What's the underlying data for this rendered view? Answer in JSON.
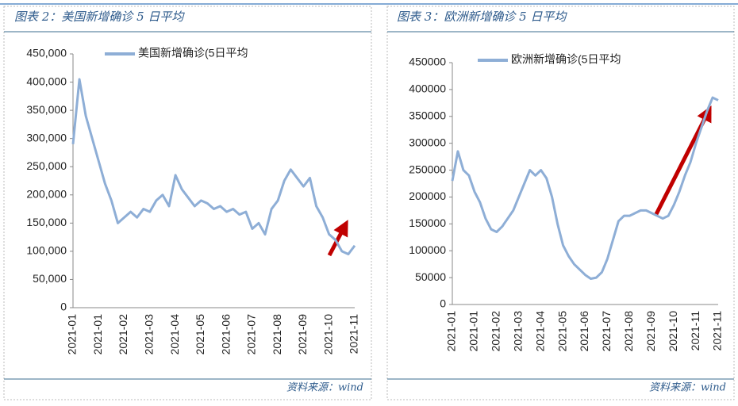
{
  "chart_data": [
    {
      "type": "line",
      "title": "图表 2：美国新增确诊 5 日平均",
      "source": "资料来源：wind",
      "categories": [
        "2021-01",
        null,
        null,
        null,
        "2021-01",
        null,
        null,
        null,
        "2021-02",
        null,
        null,
        null,
        "2021-03",
        null,
        null,
        null,
        "2021-04",
        null,
        null,
        null,
        "2021-05",
        null,
        null,
        null,
        "2021-06",
        null,
        null,
        null,
        "2021-07",
        null,
        null,
        null,
        "2021-08",
        null,
        null,
        null,
        "2021-09",
        null,
        null,
        null,
        "2021-10",
        null,
        null,
        null,
        "2021-11"
      ],
      "series": [
        {
          "name": "美国新增确诊(5日平均",
          "color": "#8eaed6",
          "values": [
            290000,
            405000,
            340000,
            300000,
            260000,
            220000,
            190000,
            150000,
            160000,
            170000,
            160000,
            175000,
            170000,
            190000,
            200000,
            180000,
            235000,
            210000,
            195000,
            180000,
            190000,
            185000,
            175000,
            180000,
            170000,
            175000,
            165000,
            170000,
            140000,
            150000,
            130000,
            175000,
            190000,
            225000,
            245000,
            230000,
            215000,
            230000,
            180000,
            160000,
            130000,
            120000,
            100000,
            95000,
            110000
          ]
        }
      ],
      "ylim": [
        0,
        450000
      ],
      "yticks": [
        {
          "value": 0,
          "label": "0"
        },
        {
          "value": 50000,
          "label": "50,000"
        },
        {
          "value": 100000,
          "label": "100,000"
        },
        {
          "value": 150000,
          "label": "150,000"
        },
        {
          "value": 200000,
          "label": "200,000"
        },
        {
          "value": 250000,
          "label": "250,000"
        },
        {
          "value": 300000,
          "label": "300,000"
        },
        {
          "value": 350000,
          "label": "350,000"
        },
        {
          "value": 400000,
          "label": "400,000"
        },
        {
          "value": 450000,
          "label": "450,000"
        }
      ],
      "legend": "top"
    },
    {
      "type": "line",
      "title": "图表 3：欧洲新增确诊 5 日平均",
      "source": "资料来源：wind",
      "categories": [
        "2021-01",
        null,
        null,
        null,
        "2021-01",
        null,
        null,
        null,
        "2021-02",
        null,
        null,
        null,
        "2021-03",
        null,
        null,
        null,
        "2021-04",
        null,
        null,
        null,
        "2021-05",
        null,
        null,
        null,
        "2021-06",
        null,
        null,
        null,
        "2021-07",
        null,
        null,
        null,
        "2021-08",
        null,
        null,
        null,
        "2021-09",
        null,
        null,
        null,
        "2021-10",
        null,
        null,
        null,
        "2021-11",
        null,
        null,
        null,
        "2021-11"
      ],
      "series": [
        {
          "name": "欧洲新增确诊(5日平均",
          "color": "#8eaed6",
          "values": [
            230000,
            285000,
            250000,
            240000,
            210000,
            190000,
            160000,
            140000,
            135000,
            145000,
            160000,
            175000,
            200000,
            225000,
            250000,
            240000,
            250000,
            235000,
            200000,
            150000,
            110000,
            90000,
            75000,
            65000,
            55000,
            48000,
            50000,
            60000,
            85000,
            120000,
            155000,
            165000,
            165000,
            170000,
            175000,
            175000,
            170000,
            165000,
            160000,
            165000,
            185000,
            210000,
            240000,
            265000,
            300000,
            330000,
            360000,
            385000,
            380000
          ]
        }
      ],
      "ylim": [
        0,
        450000
      ],
      "yticks": [
        0,
        50000,
        100000,
        150000,
        200000,
        250000,
        300000,
        350000,
        400000,
        450000
      ],
      "legend": "top"
    }
  ]
}
